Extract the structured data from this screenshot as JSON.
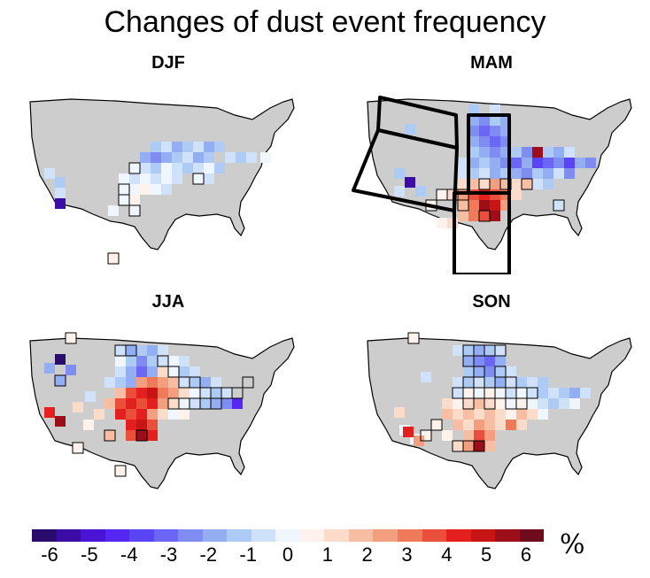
{
  "title": "Changes of dust event frequency",
  "panels": [
    {
      "label": "DJF"
    },
    {
      "label": "MAM"
    },
    {
      "label": "JJA"
    },
    {
      "label": "SON"
    }
  ],
  "colorbar": {
    "colors": [
      "#2a0c6b",
      "#3b0ca6",
      "#4a14d6",
      "#5527f2",
      "#5a45f5",
      "#6b66f5",
      "#7f8cf2",
      "#93aef2",
      "#aecbf5",
      "#cfe2fa",
      "#f0f6fd",
      "#fdf3ec",
      "#fbdccb",
      "#f7bea3",
      "#f39e7e",
      "#ef7a5a",
      "#ea4f3c",
      "#e3201d",
      "#c71414",
      "#9c0f1a",
      "#6e0b1c"
    ],
    "ticks": [
      "-6",
      "-5",
      "-4",
      "-3",
      "-2",
      "-1",
      "0",
      "1",
      "2",
      "3",
      "4",
      "5",
      "6"
    ],
    "unit": "%"
  },
  "land_color": "#cdcdcd"
}
